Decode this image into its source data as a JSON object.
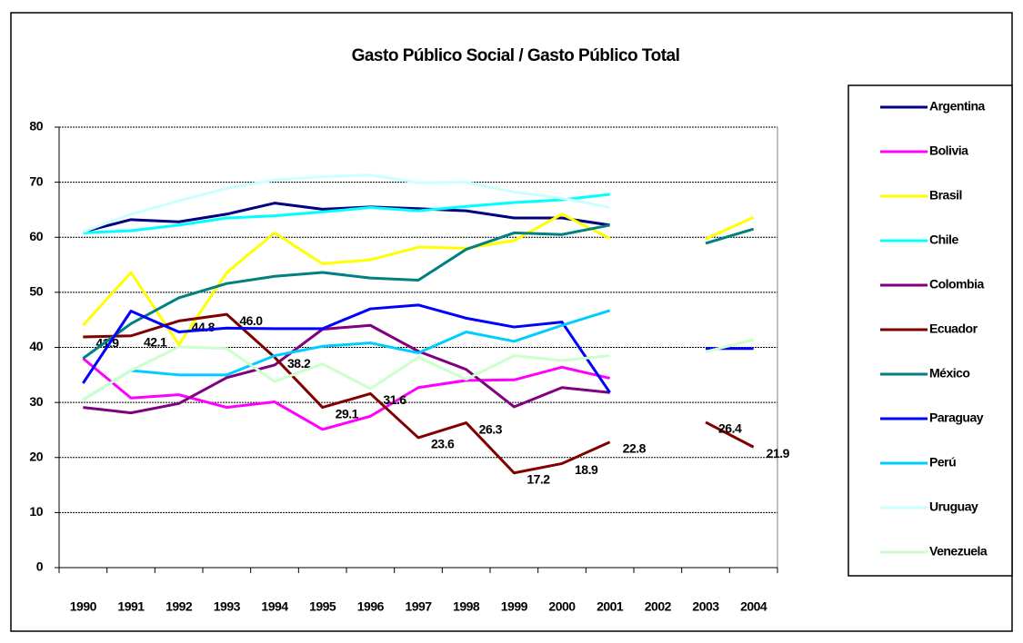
{
  "chart_data": {
    "type": "line",
    "title": "Gasto Público Social / Gasto Público Total",
    "categories": [
      "1990",
      "1991",
      "1992",
      "1993",
      "1994",
      "1995",
      "1996",
      "1997",
      "1998",
      "1999",
      "2000",
      "2001",
      "2002",
      "2003",
      "2004"
    ],
    "ylim": [
      0,
      80
    ],
    "yticks": [
      0,
      10,
      20,
      30,
      40,
      50,
      60,
      70,
      80
    ],
    "grid": true,
    "legend": "right",
    "series": [
      {
        "name": "Argentina",
        "color": "#000080",
        "values": [
          61.0,
          63.2,
          62.8,
          64.2,
          66.2,
          65.1,
          65.5,
          65.2,
          64.8,
          63.5,
          63.5,
          62.2,
          null,
          null,
          null
        ]
      },
      {
        "name": "Bolivia",
        "color": "#ff00ff",
        "values": [
          38.0,
          30.8,
          31.4,
          29.1,
          30.1,
          25.1,
          27.5,
          32.7,
          34.0,
          34.1,
          36.4,
          34.4,
          null,
          null,
          null
        ]
      },
      {
        "name": "Brasil",
        "color": "#ffff00",
        "values": [
          44.0,
          53.6,
          40.5,
          53.6,
          60.8,
          55.2,
          55.9,
          58.2,
          58.0,
          59.4,
          64.2,
          59.8,
          null,
          59.7,
          63.6
        ]
      },
      {
        "name": "Chile",
        "color": "#00ffff",
        "values": [
          60.8,
          61.2,
          62.2,
          63.5,
          63.9,
          64.6,
          65.4,
          64.8,
          65.6,
          66.3,
          66.8,
          67.8,
          null,
          null,
          null
        ]
      },
      {
        "name": "Colombia",
        "color": "#800080",
        "values": [
          29.1,
          28.1,
          29.8,
          34.5,
          36.8,
          43.3,
          44.0,
          39.3,
          36.0,
          29.2,
          32.7,
          31.8,
          null,
          null,
          null
        ]
      },
      {
        "name": "Ecuador",
        "color": "#800000",
        "values": [
          41.9,
          42.1,
          44.8,
          46.0,
          38.2,
          29.1,
          31.6,
          23.6,
          26.3,
          17.2,
          18.9,
          22.8,
          null,
          26.4,
          21.9
        ],
        "value_labels": [
          "41.9",
          "42.1",
          "44.8",
          "46.0",
          "38.2",
          "29.1",
          "31.6",
          "23.6",
          "26.3",
          "17.2",
          "18.9",
          "22.8",
          null,
          "26.4",
          "21.9"
        ]
      },
      {
        "name": "México",
        "color": "#008080",
        "values": [
          38.0,
          44.3,
          49.0,
          51.6,
          52.9,
          53.6,
          52.6,
          52.2,
          57.8,
          60.8,
          60.5,
          62.2,
          null,
          58.9,
          61.5
        ]
      },
      {
        "name": "Paraguay",
        "color": "#0000ff",
        "values": [
          33.5,
          46.6,
          42.8,
          43.5,
          43.4,
          43.4,
          47.0,
          47.7,
          45.3,
          43.7,
          44.6,
          31.8,
          null,
          39.8,
          39.8
        ]
      },
      {
        "name": "Perú",
        "color": "#00ccff",
        "values": [
          30.5,
          35.8,
          35.0,
          35.0,
          38.5,
          40.2,
          40.8,
          39.0,
          42.8,
          41.1,
          44.0,
          46.7,
          null,
          null,
          null
        ]
      },
      {
        "name": "Uruguay",
        "color": "#ccffff",
        "values": [
          61.0,
          64.2,
          66.6,
          68.9,
          70.4,
          71.0,
          71.3,
          69.9,
          70.0,
          68.2,
          67.1,
          65.4,
          null,
          null,
          null
        ]
      },
      {
        "name": "Venezuela",
        "color": "#ccffcc",
        "values": [
          30.5,
          35.8,
          40.1,
          39.8,
          33.8,
          37.0,
          32.5,
          38.2,
          34.2,
          38.5,
          37.6,
          38.5,
          null,
          39.2,
          41.4
        ]
      }
    ]
  }
}
